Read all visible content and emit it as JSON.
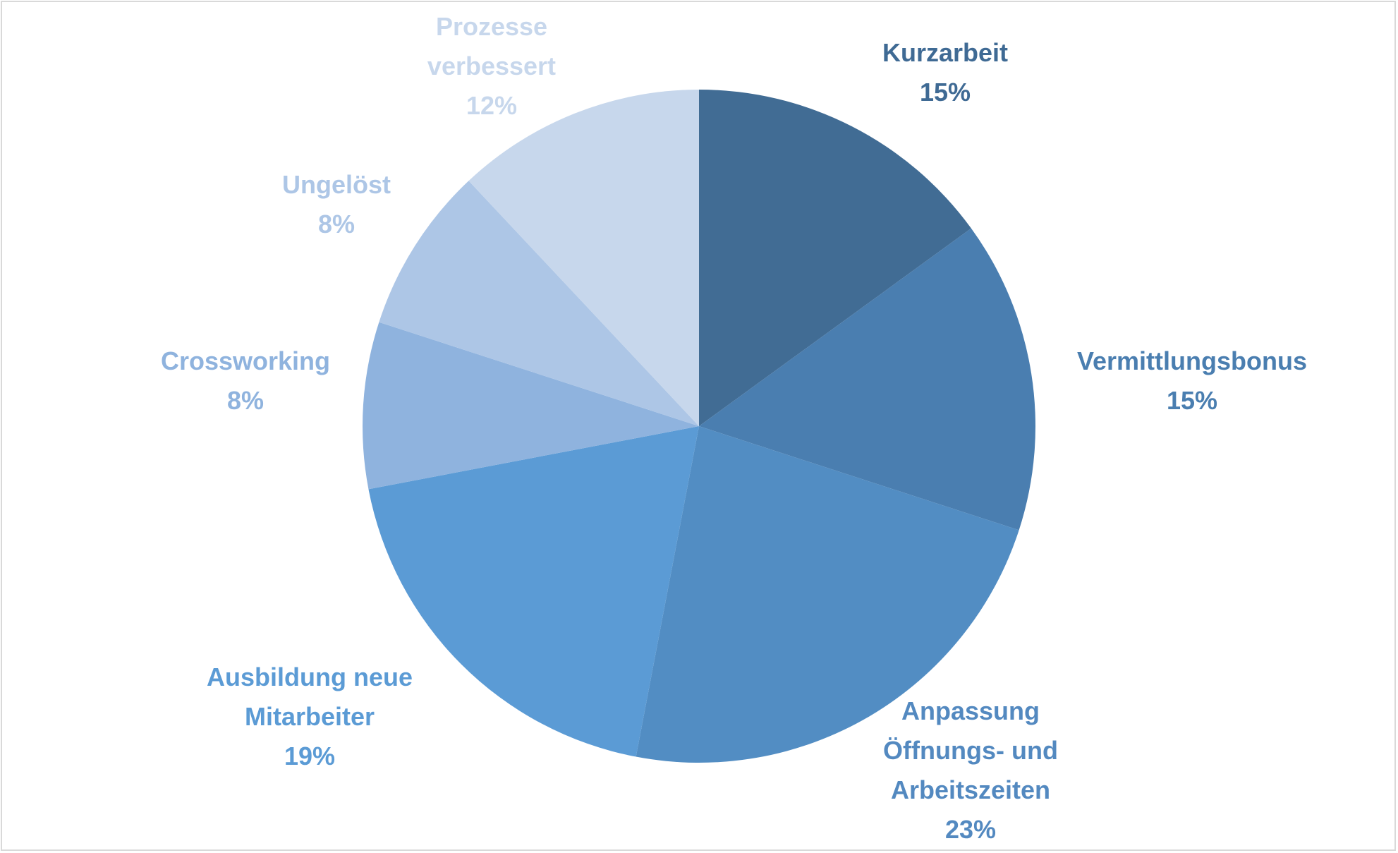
{
  "chart_data": {
    "type": "pie",
    "start_angle": "12 o'clock",
    "direction": "clockwise",
    "slices": [
      {
        "label_lines": [
          "Kurzarbeit"
        ],
        "value": 15,
        "pct_text": "15%",
        "color": "#416C94",
        "label_color": "#3F6A94"
      },
      {
        "label_lines": [
          "Vermittlungsbonus"
        ],
        "value": 15,
        "pct_text": "15%",
        "color": "#4A7EB0",
        "label_color": "#4A7EB0"
      },
      {
        "label_lines": [
          "Anpassung",
          "Öffnungs- und",
          "Arbeitszeiten"
        ],
        "value": 23,
        "pct_text": "23%",
        "color": "#528DC3",
        "label_color": "#5389C0"
      },
      {
        "label_lines": [
          "Ausbildung neue",
          "Mitarbeiter"
        ],
        "value": 19,
        "pct_text": "19%",
        "color": "#5B9BD5",
        "label_color": "#5B9BD5"
      },
      {
        "label_lines": [
          "Crossworking"
        ],
        "value": 8,
        "pct_text": "8%",
        "color": "#8FB3DE",
        "label_color": "#8FB3DE"
      },
      {
        "label_lines": [
          "Ungelöst"
        ],
        "value": 8,
        "pct_text": "8%",
        "color": "#ADC6E6",
        "label_color": "#ADC6E6"
      },
      {
        "label_lines": [
          "Prozesse",
          "verbessert"
        ],
        "value": 12,
        "pct_text": "12%",
        "color": "#C7D7EC",
        "label_color": "#C7D7EC"
      }
    ],
    "legend": "none",
    "data_labels": "outside"
  }
}
